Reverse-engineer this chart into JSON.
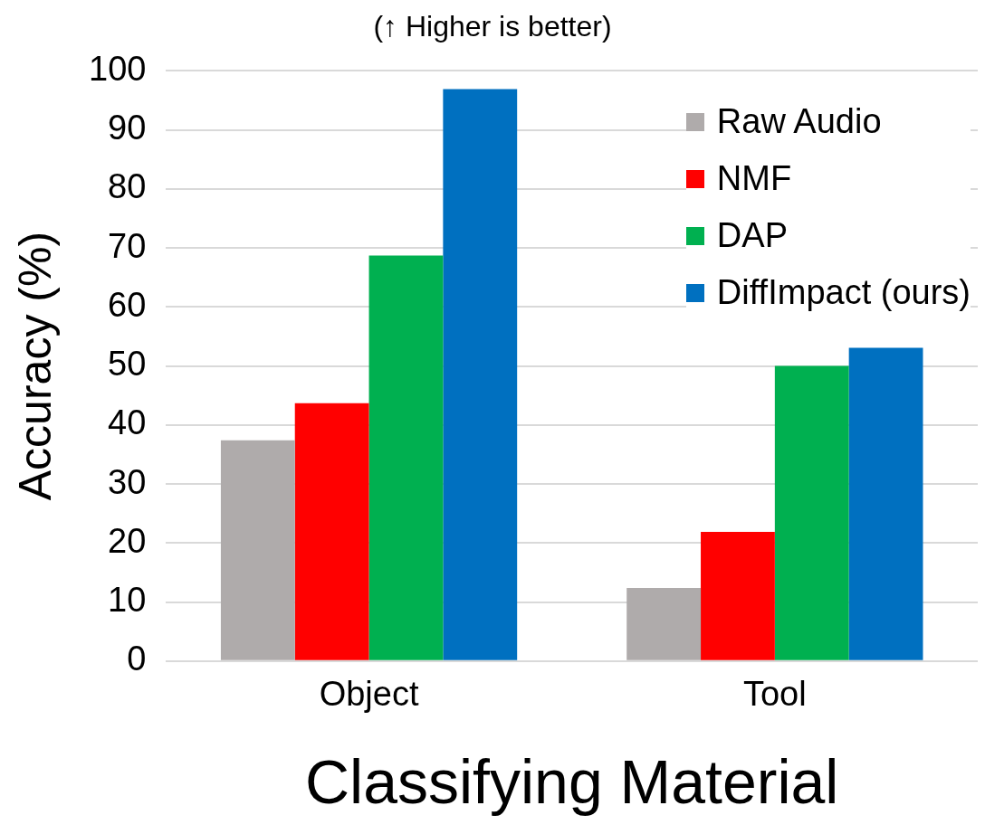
{
  "chart_data": {
    "type": "bar",
    "title": "(↑ Higher is better)",
    "xlabel": "Classifying Material",
    "ylabel": "Accuracy (%)",
    "categories": [
      "Object",
      "Tool"
    ],
    "series": [
      {
        "name": "Raw Audio",
        "color": "#afabab",
        "values": [
          37.4,
          12.4
        ]
      },
      {
        "name": "NMF",
        "color": "#ff0000",
        "values": [
          43.7,
          21.9
        ]
      },
      {
        "name": "DAP",
        "color": "#00b050",
        "values": [
          68.7,
          50
        ]
      },
      {
        "name": "DiffImpact (ours)",
        "color": "#0070c0",
        "values": [
          96.9,
          53.1
        ]
      }
    ],
    "ylim": [
      0,
      100
    ],
    "yticks": [
      0,
      10,
      20,
      30,
      40,
      50,
      60,
      70,
      80,
      90,
      100
    ],
    "grid": "y",
    "legend": "top right"
  }
}
